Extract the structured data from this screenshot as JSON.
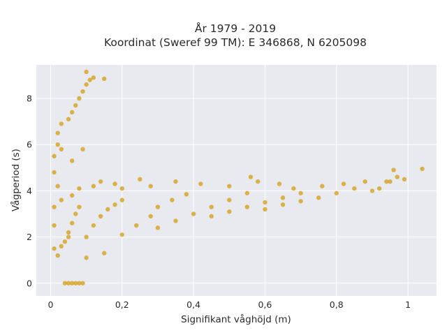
{
  "colors": {
    "plot_background": "#e9e9f0",
    "grid": "#ffffff",
    "marker": "#d4a21e"
  },
  "chart_data": {
    "type": "scatter",
    "title_line1": "År 1979 - 2019",
    "title_line2": "Koordinat (Sweref 99 TM): E 346868, N 6205098",
    "xlabel": "Signifikant våghöjd (m)",
    "ylabel": "Vågperiod (s)",
    "xlim": [
      -0.04,
      1.08
    ],
    "ylim": [
      -0.55,
      9.45
    ],
    "x_ticks": [
      0,
      0.2,
      0.4,
      0.6,
      0.8,
      1
    ],
    "x_tick_labels": [
      "0",
      "0,2",
      "0,4",
      "0,6",
      "0,8",
      "1"
    ],
    "y_ticks": [
      0,
      2,
      4,
      6,
      8
    ],
    "y_tick_labels": [
      "0",
      "2",
      "4",
      "6",
      "8"
    ],
    "grid": true,
    "series": [
      {
        "color": "#d4a21e",
        "points": [
          [
            0.04,
            0
          ],
          [
            0.05,
            0
          ],
          [
            0.06,
            0
          ],
          [
            0.07,
            0
          ],
          [
            0.08,
            0
          ],
          [
            0.09,
            0
          ],
          [
            0.01,
            1.5
          ],
          [
            0.01,
            2.5
          ],
          [
            0.01,
            3.3
          ],
          [
            0.01,
            4.8
          ],
          [
            0.01,
            5.5
          ],
          [
            0.02,
            6.0
          ],
          [
            0.02,
            6.5
          ],
          [
            0.03,
            6.9
          ],
          [
            0.03,
            5.8
          ],
          [
            0.02,
            4.2
          ],
          [
            0.02,
            1.2
          ],
          [
            0.03,
            3.6
          ],
          [
            0.05,
            7.1
          ],
          [
            0.06,
            7.4
          ],
          [
            0.07,
            7.7
          ],
          [
            0.08,
            8.0
          ],
          [
            0.09,
            8.3
          ],
          [
            0.1,
            8.6
          ],
          [
            0.11,
            8.8
          ],
          [
            0.1,
            9.15
          ],
          [
            0.12,
            8.9
          ],
          [
            0.15,
            8.85
          ],
          [
            0.06,
            5.3
          ],
          [
            0.09,
            5.8
          ],
          [
            0.06,
            3.8
          ],
          [
            0.08,
            4.1
          ],
          [
            0.05,
            2.0
          ],
          [
            0.1,
            1.1
          ],
          [
            0.15,
            1.3
          ],
          [
            0.03,
            1.6
          ],
          [
            0.04,
            1.8
          ],
          [
            0.05,
            2.2
          ],
          [
            0.06,
            2.6
          ],
          [
            0.07,
            3.0
          ],
          [
            0.08,
            3.3
          ],
          [
            0.1,
            2.0
          ],
          [
            0.12,
            2.5
          ],
          [
            0.14,
            2.9
          ],
          [
            0.16,
            3.2
          ],
          [
            0.18,
            3.4
          ],
          [
            0.2,
            3.6
          ],
          [
            0.2,
            2.1
          ],
          [
            0.24,
            2.5
          ],
          [
            0.28,
            2.9
          ],
          [
            0.3,
            3.3
          ],
          [
            0.34,
            3.6
          ],
          [
            0.38,
            3.85
          ],
          [
            0.3,
            2.4
          ],
          [
            0.35,
            2.7
          ],
          [
            0.4,
            3.0
          ],
          [
            0.45,
            3.3
          ],
          [
            0.5,
            3.6
          ],
          [
            0.55,
            3.9
          ],
          [
            0.45,
            2.9
          ],
          [
            0.5,
            3.1
          ],
          [
            0.55,
            3.3
          ],
          [
            0.6,
            3.5
          ],
          [
            0.65,
            3.7
          ],
          [
            0.7,
            3.9
          ],
          [
            0.6,
            3.2
          ],
          [
            0.65,
            3.4
          ],
          [
            0.7,
            3.55
          ],
          [
            0.75,
            3.7
          ],
          [
            0.8,
            3.9
          ],
          [
            0.85,
            4.1
          ],
          [
            0.82,
            4.3
          ],
          [
            0.88,
            4.4
          ],
          [
            0.92,
            4.1
          ],
          [
            0.95,
            4.4
          ],
          [
            0.97,
            4.6
          ],
          [
            0.99,
            4.5
          ],
          [
            0.96,
            4.9
          ],
          [
            1.04,
            4.95
          ],
          [
            0.94,
            4.4
          ],
          [
            0.9,
            4.0
          ],
          [
            0.76,
            4.2
          ],
          [
            0.64,
            4.3
          ],
          [
            0.56,
            4.6
          ],
          [
            0.58,
            4.4
          ],
          [
            0.68,
            4.1
          ],
          [
            0.35,
            4.4
          ],
          [
            0.28,
            4.2
          ],
          [
            0.25,
            4.5
          ],
          [
            0.2,
            4.1
          ],
          [
            0.14,
            4.4
          ],
          [
            0.12,
            4.2
          ],
          [
            0.18,
            4.3
          ],
          [
            0.42,
            4.3
          ],
          [
            0.5,
            4.2
          ]
        ]
      }
    ]
  }
}
